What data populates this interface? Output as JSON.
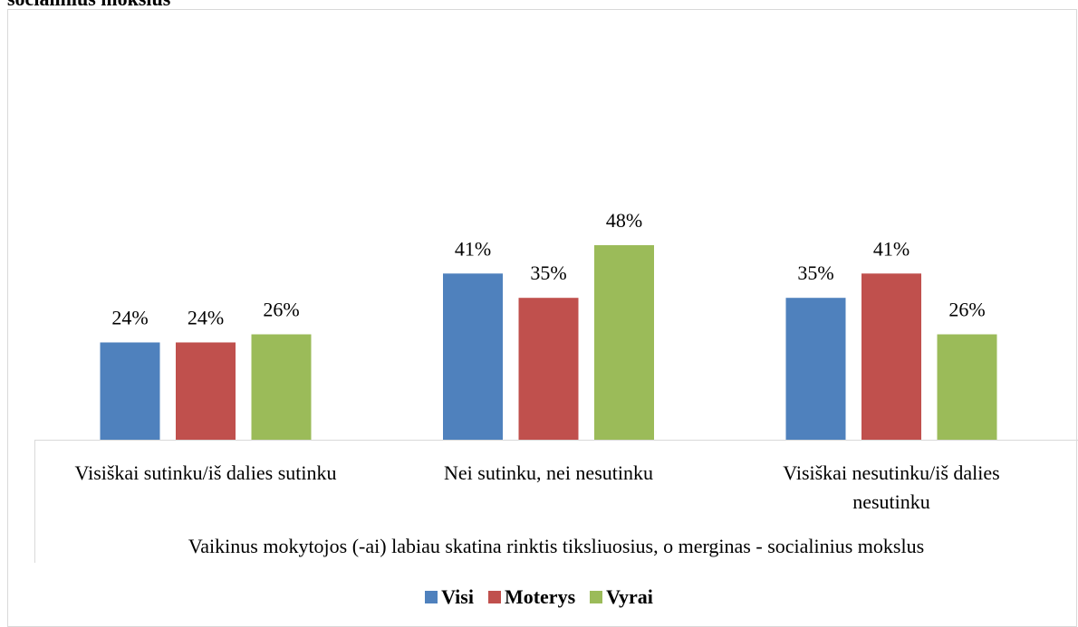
{
  "chart_data": {
    "type": "bar",
    "title": "socialinius mokslus",
    "x_label": "Vaikinus mokytojos (-ai) labiau skatina rinktis tiksliuosius, o merginas - socialinius mokslus",
    "categories": [
      "Visiškai sutinku/iš dalies sutinku",
      "Nei sutinku, nei nesutinku",
      "Visiškai nesutinku/iš dalies nesutinku"
    ],
    "series": [
      {
        "name": "Visi",
        "color": "#4f81bd",
        "values": [
          24,
          41,
          35
        ],
        "value_labels": [
          "24%",
          "41%",
          "35%"
        ]
      },
      {
        "name": "Moterys",
        "color": "#c0504d",
        "values": [
          24,
          35,
          41
        ],
        "value_labels": [
          "24%",
          "35%",
          "41%"
        ]
      },
      {
        "name": "Vyrai",
        "color": "#9bbb59",
        "values": [
          26,
          48,
          26
        ],
        "value_labels": [
          "26%",
          "48%",
          "26%"
        ]
      }
    ],
    "legend": "bottom"
  }
}
